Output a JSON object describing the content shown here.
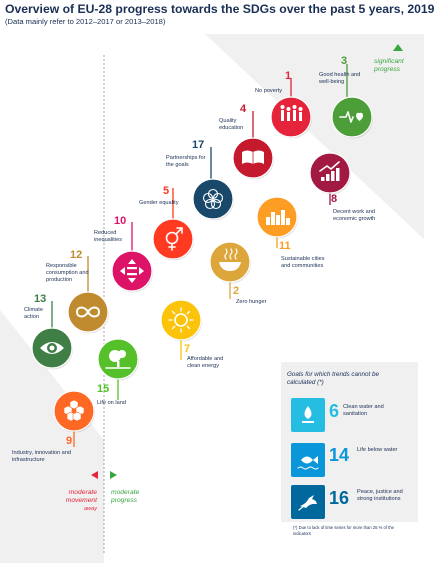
{
  "title": "Overview of EU-28 progress towards the SDGs over the past 5 years, 2019",
  "subtitle": "(Data mainly refer to 2012–2017 or 2013–2018)",
  "significant_label": "significant progress",
  "moderate_progress_label": "moderate progress",
  "moderate_away_label": "moderate movement",
  "away_label": "away",
  "panel_title": "Goals for which trends cannot be calculated (*)",
  "footnote": "(*) Due to lack of time series for more than 25 % of the indicators",
  "colors": {
    "navy": "#1a2f55",
    "green_accent": "#3aa640",
    "red_accent": "#e5243b",
    "panel_bg": "#f0f0f0",
    "connector": "#9a9a9a"
  },
  "goals": [
    {
      "number": "3",
      "label": "Good health and well-being",
      "color": "#4c9f38",
      "icon": "heartbeat-icon"
    },
    {
      "number": "1",
      "label": "No poverty",
      "color": "#e5243b",
      "icon": "family-icon"
    },
    {
      "number": "4",
      "label": "Quality education",
      "color": "#c5192d",
      "icon": "book-icon"
    },
    {
      "number": "8",
      "label": "Decent work and economic growth",
      "color": "#a21942",
      "icon": "growth-chart-icon"
    },
    {
      "number": "17",
      "label": "Partnerships for the goals",
      "color": "#19486a",
      "icon": "rings-icon"
    },
    {
      "number": "11",
      "label": "Sustainable cities and communities",
      "color": "#fd9d24",
      "icon": "buildings-icon"
    },
    {
      "number": "5",
      "label": "Gender equality",
      "color": "#ff3a21",
      "icon": "gender-icon"
    },
    {
      "number": "10",
      "label": "Reduced inequalities",
      "color": "#dd1367",
      "icon": "equality-icon"
    },
    {
      "number": "2",
      "label": "Zero hunger",
      "color": "#dda63a",
      "icon": "bowl-icon"
    },
    {
      "number": "12",
      "label": "Responsible consumption and production",
      "color": "#bf8b2e",
      "icon": "infinity-icon"
    },
    {
      "number": "7",
      "label": "Affordable and clean energy",
      "color": "#fcc30b",
      "icon": "sun-icon"
    },
    {
      "number": "13",
      "label": "Climate action",
      "color": "#3f7e44",
      "icon": "eye-globe-icon"
    },
    {
      "number": "15",
      "label": "Life on land",
      "color": "#56c02b",
      "icon": "tree-icon"
    },
    {
      "number": "9",
      "label": "Industry, innovation and infrastructure",
      "color": "#fd6925",
      "icon": "cubes-icon"
    }
  ],
  "uncalculated_goals": [
    {
      "number": "6",
      "label": "Clean water and sanitation",
      "color": "#26bde2",
      "icon": "water-drop-icon"
    },
    {
      "number": "14",
      "label": "Life below water",
      "color": "#0a97d9",
      "icon": "fish-icon"
    },
    {
      "number": "16",
      "label": "Peace, justice and strong institutions",
      "color": "#00689d",
      "icon": "dove-icon"
    }
  ]
}
